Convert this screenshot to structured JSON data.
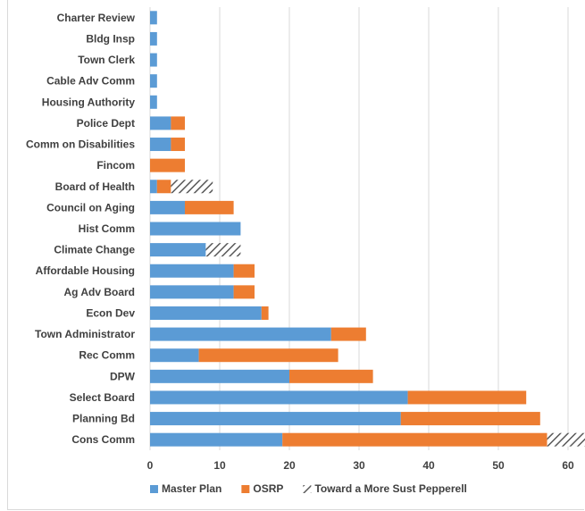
{
  "chart_data": {
    "type": "bar",
    "orientation": "horizontal",
    "stacked": true,
    "categories": [
      "Charter Review",
      "Bldg Insp",
      "Town Clerk",
      "Cable Adv Comm",
      "Housing Authority",
      "Police Dept",
      "Comm on Disabilities",
      "Fincom",
      "Board of Health",
      "Council on Aging",
      "Hist Comm",
      "Climate Change",
      "Affordable Housing",
      "Ag Adv Board",
      "Econ Dev",
      "Town Administrator",
      "Rec Comm",
      "DPW",
      "Select Board",
      "Planning Bd",
      "Cons Comm"
    ],
    "series": [
      {
        "name": "Master Plan",
        "color": "#5b9bd5",
        "pattern": "solid",
        "values": [
          1,
          1,
          1,
          1,
          1,
          3,
          3,
          0,
          1,
          5,
          13,
          8,
          12,
          12,
          16,
          26,
          7,
          20,
          37,
          36,
          19
        ]
      },
      {
        "name": "OSRP",
        "color": "#ed7d31",
        "pattern": "solid",
        "values": [
          0,
          0,
          0,
          0,
          0,
          2,
          2,
          5,
          2,
          7,
          0,
          0,
          3,
          3,
          1,
          5,
          20,
          12,
          17,
          20,
          38
        ]
      },
      {
        "name": "Toward a More Sust Pepperell",
        "color": "#595959",
        "pattern": "diagonal-hatch",
        "values": [
          0,
          0,
          0,
          0,
          0,
          0,
          0,
          0,
          6,
          0,
          0,
          5,
          0,
          0,
          0,
          0,
          0,
          0,
          0,
          0,
          7
        ]
      }
    ],
    "xlim": [
      0,
      63
    ],
    "xticks": [
      "0",
      "10",
      "20",
      "30",
      "40",
      "50",
      "60"
    ],
    "grid": true,
    "legend_position": "bottom"
  }
}
